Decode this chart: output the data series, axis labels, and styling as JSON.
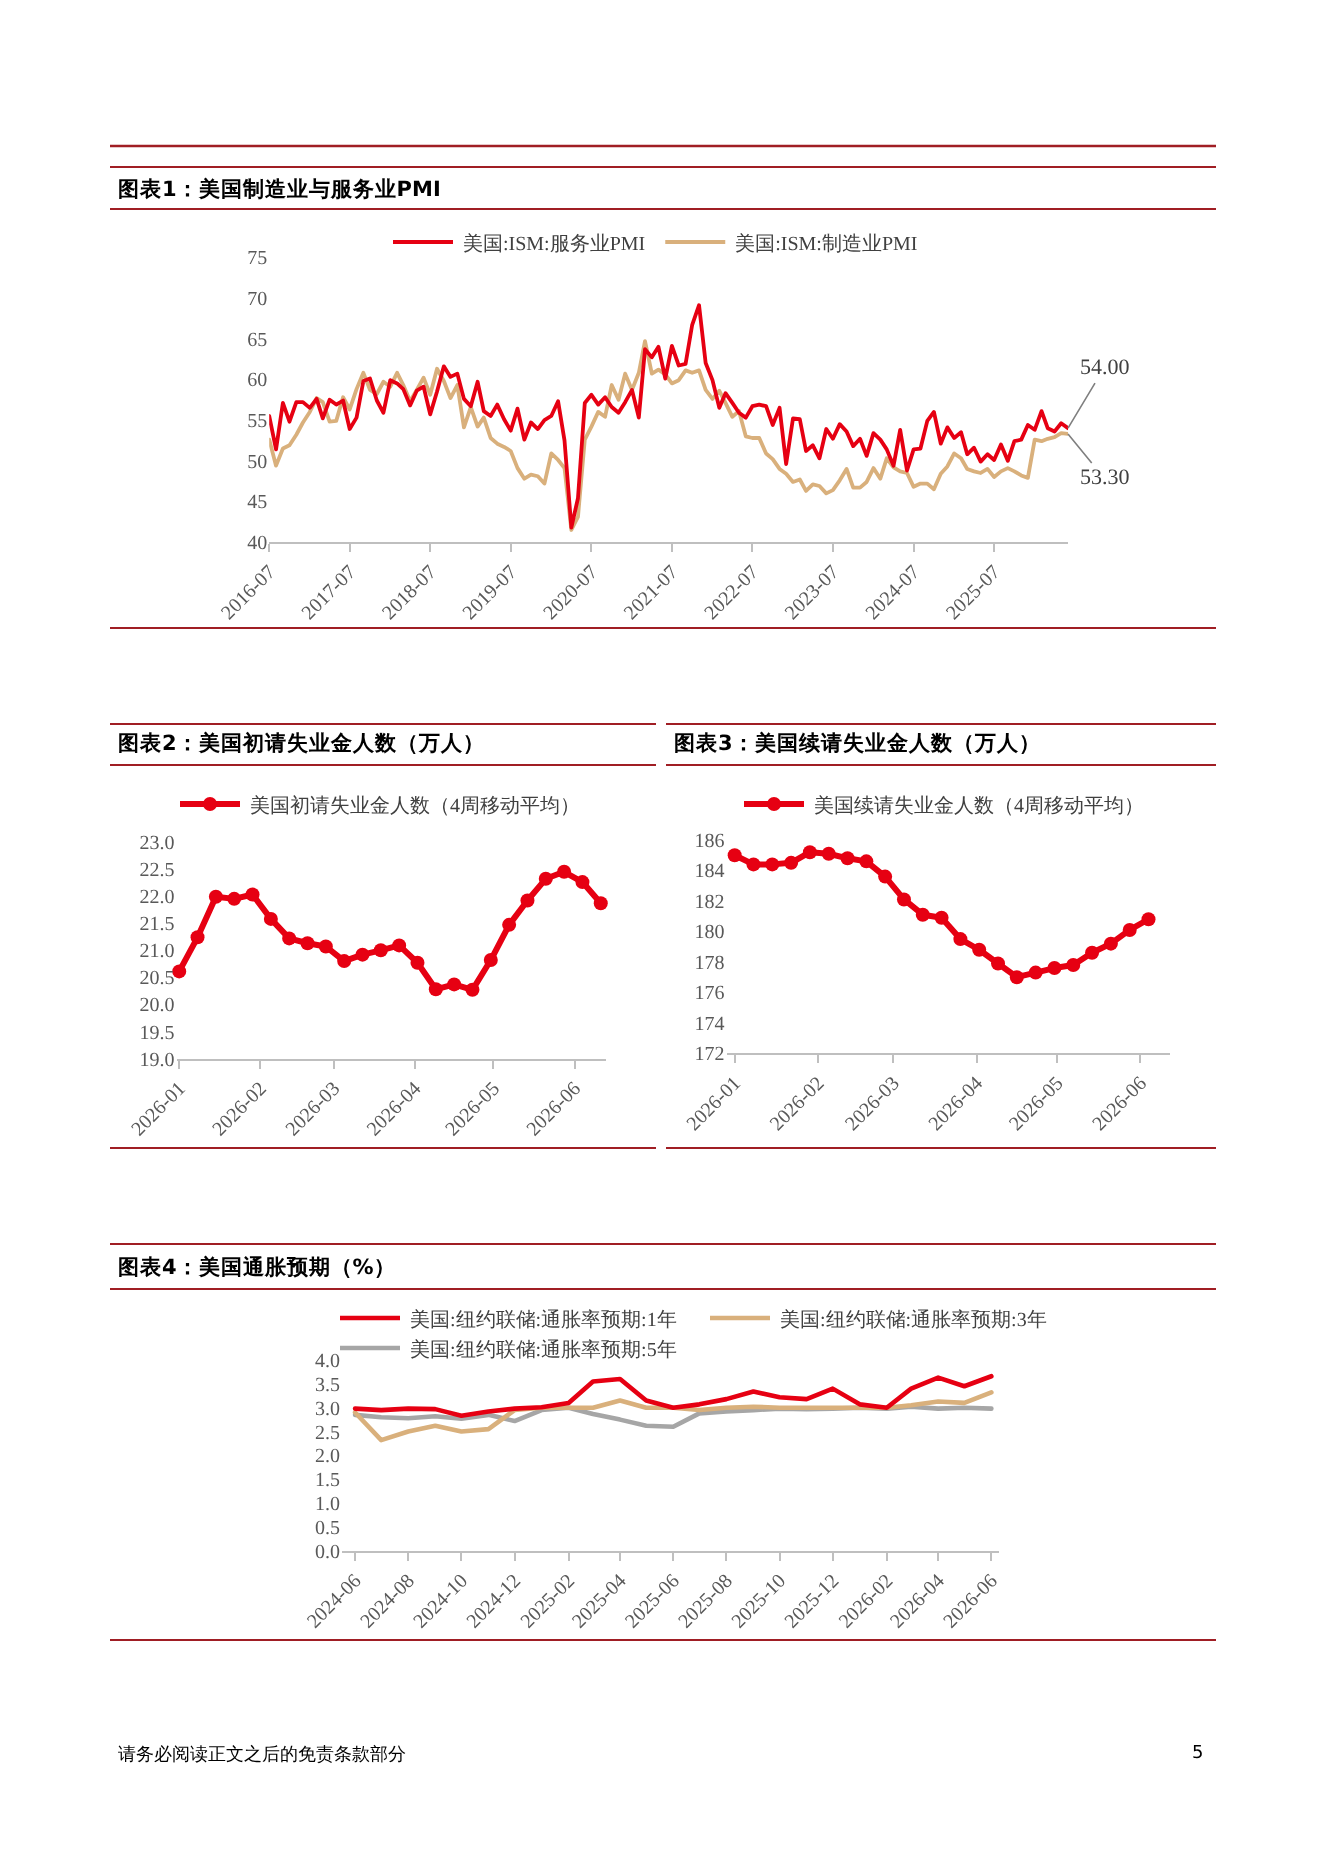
{
  "chart_data": [
    {
      "type": "line",
      "title": "图表1：美国制造业与服务业PMI",
      "legend": "top",
      "x": [
        "2016-07",
        "2016-08",
        "2016-09",
        "2016-10",
        "2016-11",
        "2016-12",
        "2017-01",
        "2017-02",
        "2017-03",
        "2017-04",
        "2017-05",
        "2017-06",
        "2017-07",
        "2017-08",
        "2017-09",
        "2017-10",
        "2017-11",
        "2017-12",
        "2018-01",
        "2018-02",
        "2018-03",
        "2018-04",
        "2018-05",
        "2018-06",
        "2018-07",
        "2018-08",
        "2018-09",
        "2018-10",
        "2018-11",
        "2018-12",
        "2019-01",
        "2019-02",
        "2019-03",
        "2019-04",
        "2019-05",
        "2019-06",
        "2019-07",
        "2019-08",
        "2019-09",
        "2019-10",
        "2019-11",
        "2019-12",
        "2020-01",
        "2020-02",
        "2020-03",
        "2020-04",
        "2020-05",
        "2020-06",
        "2020-07",
        "2020-08",
        "2020-09",
        "2020-10",
        "2020-11",
        "2020-12",
        "2021-01",
        "2021-02",
        "2021-03",
        "2021-04",
        "2021-05",
        "2021-06",
        "2021-07",
        "2021-08",
        "2021-09",
        "2021-10",
        "2021-11",
        "2021-12",
        "2022-01",
        "2022-02",
        "2022-03",
        "2022-04",
        "2022-05",
        "2022-06",
        "2022-07",
        "2022-08",
        "2022-09",
        "2022-10",
        "2022-11",
        "2022-12",
        "2023-01",
        "2023-02",
        "2023-03",
        "2023-04",
        "2023-05",
        "2023-06",
        "2023-07",
        "2023-08",
        "2023-09",
        "2023-10",
        "2023-11",
        "2023-12",
        "2024-01",
        "2024-02",
        "2024-03",
        "2024-04",
        "2024-05",
        "2024-06",
        "2024-07",
        "2024-08",
        "2024-09",
        "2024-10",
        "2024-11",
        "2024-12",
        "2025-01",
        "2025-02",
        "2025-03",
        "2025-04",
        "2025-05",
        "2025-06",
        "2025-07",
        "2025-08",
        "2025-09",
        "2025-10",
        "2025-11",
        "2025-12",
        "2026-01",
        "2026-02",
        "2026-03",
        "2026-04",
        "2026-05",
        "2026-06"
      ],
      "series": [
        {
          "name": "美国:ISM:服务业PMI",
          "color": "#e60012",
          "values": [
            55.5,
            51.4,
            57.1,
            54.8,
            57.2,
            57.2,
            56.5,
            57.6,
            55.2,
            57.5,
            56.9,
            57.4,
            53.9,
            55.3,
            59.8,
            60.1,
            57.4,
            55.9,
            59.9,
            59.5,
            58.8,
            56.8,
            58.6,
            59.1,
            55.7,
            58.5,
            61.6,
            60.3,
            60.7,
            57.6,
            56.7,
            59.7,
            56.1,
            55.5,
            56.9,
            55.1,
            53.7,
            56.4,
            52.6,
            54.7,
            53.9,
            55.0,
            55.5,
            57.3,
            52.5,
            41.8,
            45.4,
            57.1,
            58.1,
            56.9,
            57.8,
            56.6,
            55.9,
            57.2,
            58.7,
            55.3,
            63.7,
            62.7,
            64.0,
            60.1,
            64.1,
            61.7,
            61.9,
            66.7,
            69.1,
            62.0,
            59.9,
            56.5,
            58.3,
            57.1,
            55.9,
            55.3,
            56.7,
            56.9,
            56.7,
            54.4,
            56.5,
            49.6,
            55.2,
            55.1,
            51.2,
            51.9,
            50.3,
            53.9,
            52.7,
            54.5,
            53.6,
            51.8,
            52.7,
            50.6,
            53.4,
            52.6,
            51.4,
            49.4,
            53.8,
            48.8,
            51.4,
            51.5,
            54.9,
            56.0,
            52.1,
            54.1,
            52.8,
            53.5,
            50.8,
            51.6,
            49.9,
            50.8,
            50.1,
            52.0,
            50.0,
            52.4,
            52.6,
            54.4,
            53.8,
            56.1,
            54.0,
            53.6,
            54.6,
            54.0
          ]
        },
        {
          "name": "美国:ISM:制造业PMI",
          "color": "#d9b07c",
          "values": [
            52.6,
            49.4,
            51.5,
            51.9,
            53.2,
            54.7,
            56.0,
            57.7,
            57.2,
            54.8,
            54.9,
            57.8,
            56.3,
            58.8,
            60.8,
            58.7,
            58.2,
            59.7,
            59.1,
            60.8,
            59.3,
            57.3,
            58.7,
            60.2,
            58.1,
            61.3,
            59.8,
            57.7,
            59.3,
            54.1,
            56.6,
            54.2,
            55.3,
            52.8,
            52.1,
            51.7,
            51.2,
            49.1,
            47.8,
            48.3,
            48.1,
            47.2,
            50.9,
            50.1,
            49.1,
            41.5,
            43.1,
            52.6,
            54.2,
            56.0,
            55.4,
            59.3,
            57.5,
            60.7,
            58.7,
            60.8,
            64.7,
            60.7,
            61.2,
            60.6,
            59.5,
            59.9,
            61.1,
            60.8,
            61.1,
            58.7,
            57.6,
            58.6,
            57.1,
            55.4,
            56.1,
            53.0,
            52.8,
            52.8,
            50.9,
            50.2,
            49.0,
            48.4,
            47.4,
            47.7,
            46.3,
            47.1,
            46.9,
            46.0,
            46.4,
            47.6,
            49.0,
            46.7,
            46.7,
            47.4,
            49.1,
            47.8,
            50.3,
            49.2,
            48.7,
            48.5,
            46.8,
            47.2,
            47.2,
            46.5,
            48.4,
            49.3,
            50.9,
            50.3,
            49.0,
            48.7,
            48.5,
            49.0,
            48.0,
            48.7,
            49.1,
            48.7,
            48.2,
            47.9,
            52.6,
            52.4,
            52.7,
            52.9,
            53.4,
            53.3
          ]
        }
      ],
      "xlim": [
        "2016-07",
        "2026-06"
      ],
      "xticks": [
        "2016-07",
        "2017-07",
        "2018-07",
        "2019-07",
        "2020-07",
        "2021-07",
        "2022-07",
        "2023-07",
        "2024-07",
        "2025-07"
      ],
      "ylim": [
        40,
        75
      ],
      "yticks": [
        40,
        45,
        50,
        55,
        60,
        65,
        70,
        75
      ],
      "annotations": [
        {
          "text": "54.00",
          "x": "2026-06",
          "y": 54.0
        },
        {
          "text": "53.30",
          "x": "2026-06",
          "y": 53.3
        }
      ]
    },
    {
      "type": "line",
      "title": "图表2：美国初请失业金人数（万人）",
      "legend": "top",
      "marker": "circle",
      "x": [
        "2026-01-01",
        "2026-01-08",
        "2026-01-15",
        "2026-01-22",
        "2026-01-29",
        "2026-02-05",
        "2026-02-12",
        "2026-02-19",
        "2026-02-26",
        "2026-03-05",
        "2026-03-12",
        "2026-03-19",
        "2026-03-26",
        "2026-04-02",
        "2026-04-09",
        "2026-04-16",
        "2026-04-23",
        "2026-04-30",
        "2026-05-07",
        "2026-05-14",
        "2026-05-21",
        "2026-05-28",
        "2026-06-04",
        "2026-06-11"
      ],
      "series": [
        {
          "name": "美国初请失业金人数（4周移动平均）",
          "color": "#e60012",
          "values": [
            20.61,
            21.24,
            21.99,
            21.95,
            22.03,
            21.58,
            21.22,
            21.13,
            21.07,
            20.8,
            20.92,
            21.0,
            21.09,
            20.77,
            20.28,
            20.37,
            20.27,
            20.82,
            21.47,
            21.92,
            22.32,
            22.45,
            22.26,
            21.87
          ]
        }
      ],
      "xlim": [
        "2025-12-31",
        "2026-06-13"
      ],
      "xticks": [
        "2026-01",
        "2026-02",
        "2026-03",
        "2026-04",
        "2026-05",
        "2026-06"
      ],
      "ylim": [
        19,
        23
      ],
      "yticks": [
        {
          "value": 19,
          "label": "19.0"
        },
        19.5,
        {
          "value": 20,
          "label": "20.0"
        },
        20.5,
        {
          "value": 21,
          "label": "21.0"
        },
        21.5,
        {
          "value": 22,
          "label": "22.0"
        },
        22.5,
        {
          "value": 23,
          "label": "23.0"
        }
      ]
    },
    {
      "type": "line",
      "title": "图表3：美国续请失业金人数（万人）",
      "legend": "top",
      "marker": "circle",
      "x": [
        "2026-01-01",
        "2026-01-08",
        "2026-01-15",
        "2026-01-22",
        "2026-01-29",
        "2026-02-05",
        "2026-02-12",
        "2026-02-19",
        "2026-02-26",
        "2026-03-05",
        "2026-03-12",
        "2026-03-19",
        "2026-03-26",
        "2026-04-02",
        "2026-04-09",
        "2026-04-16",
        "2026-04-23",
        "2026-04-30",
        "2026-05-07",
        "2026-05-14",
        "2026-05-21",
        "2026-05-28",
        "2026-06-04"
      ],
      "series": [
        {
          "name": "美国续请失业金人数（4周移动平均）",
          "color": "#e60012",
          "values": [
            185.0,
            184.4,
            184.4,
            184.5,
            185.2,
            185.1,
            184.8,
            184.6,
            183.6,
            182.1,
            181.1,
            180.9,
            179.5,
            178.8,
            177.9,
            177.0,
            177.3,
            177.6,
            177.8,
            178.6,
            179.2,
            180.1,
            180.8
          ]
        }
      ],
      "xlim": [
        "2025-12-29",
        "2026-06-12"
      ],
      "xticks": [
        "2026-01",
        "2026-02",
        "2026-03",
        "2026-04",
        "2026-05",
        "2026-06"
      ],
      "ylim": [
        172,
        186
      ],
      "yticks": [
        172,
        174,
        176,
        178,
        180,
        182,
        184,
        186
      ]
    },
    {
      "type": "line",
      "title": "图表4：美国通胀预期（%）",
      "legend": "top",
      "x": [
        "2024-06",
        "2024-07",
        "2024-08",
        "2024-09",
        "2024-10",
        "2024-11",
        "2024-12",
        "2025-01",
        "2025-02",
        "2025-03",
        "2025-04",
        "2025-05",
        "2025-06",
        "2025-07",
        "2025-08",
        "2025-09",
        "2025-10",
        "2025-11",
        "2025-12",
        "2026-01",
        "2026-02",
        "2026-03",
        "2026-04",
        "2026-05",
        "2026-06"
      ],
      "series": [
        {
          "name": "美国:纽约联储:通胀率预期:1年",
          "color": "#e60012",
          "values": [
            2.98,
            2.95,
            2.98,
            2.97,
            2.83,
            2.92,
            2.98,
            3.01,
            3.1,
            3.55,
            3.6,
            3.15,
            3.0,
            3.07,
            3.18,
            3.34,
            3.22,
            3.18,
            3.4,
            3.07,
            3.0,
            3.4,
            3.63,
            3.45,
            3.66
          ]
        },
        {
          "name": "美国:纽约联储:通胀率预期:3年",
          "color": "#d9b07c",
          "values": [
            2.9,
            2.32,
            2.5,
            2.62,
            2.5,
            2.55,
            2.95,
            3.0,
            3.0,
            3.0,
            3.15,
            3.0,
            3.0,
            2.95,
            3.0,
            3.02,
            3.0,
            3.0,
            3.0,
            3.0,
            3.0,
            3.05,
            3.13,
            3.1,
            3.32
          ]
        },
        {
          "name": "美国:纽约联储:通胀率预期:5年",
          "color": "#a6a6a6",
          "values": [
            2.85,
            2.8,
            2.78,
            2.82,
            2.77,
            2.85,
            2.72,
            2.95,
            3.0,
            2.87,
            2.75,
            2.62,
            2.6,
            2.88,
            2.92,
            2.95,
            2.98,
            2.97,
            2.98,
            3.0,
            2.98,
            3.02,
            2.98,
            3.0,
            2.98
          ]
        }
      ],
      "xlim": [
        "2024-05-17",
        "2026-06-10"
      ],
      "xticks": [
        "2024-06",
        "2024-08",
        "2024-10",
        "2024-12",
        "2025-02",
        "2025-04",
        "2025-06",
        "2025-08",
        "2025-10",
        "2025-12",
        "2026-02",
        "2026-04",
        "2026-06"
      ],
      "ylim": [
        0,
        4
      ],
      "yticks": [
        {
          "value": 0,
          "label": "0.0"
        },
        0.5,
        {
          "value": 1,
          "label": "1.0"
        },
        1.5,
        {
          "value": 2,
          "label": "2.0"
        },
        2.5,
        {
          "value": 3,
          "label": "3.0"
        },
        3.5,
        {
          "value": 4,
          "label": "4.0"
        }
      ],
      "annotations": [
        "请务必阅读正文之后的免责条款部分",
        "5"
      ]
    }
  ]
}
